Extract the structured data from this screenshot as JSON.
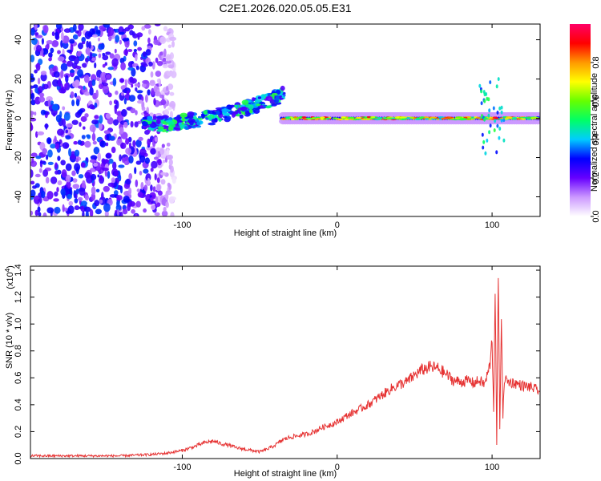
{
  "figure": {
    "title": "C2E1.2026.020.05.05.E31"
  },
  "chart_data": [
    {
      "type": "heatmap",
      "title": "C2E1.2026.020.05.05.E31",
      "xlabel": "Height of straight line (km)",
      "ylabel": "Frequency (Hz)",
      "xlim": [
        -198,
        131
      ],
      "ylim": [
        -50,
        48
      ],
      "xticks": [
        -100,
        0,
        100
      ],
      "xtick_labels": [
        "-100",
        "0",
        "100"
      ],
      "yticks": [
        -40,
        -20,
        0,
        20,
        40
      ],
      "ytick_labels": [
        "-40",
        "-20",
        "0",
        "20",
        "40"
      ],
      "grid": false,
      "colorbar": {
        "label": "Normalized spectral amplitude",
        "range": [
          0,
          1
        ],
        "ticks": [
          0,
          0.2,
          0.4,
          0.6,
          0.8
        ],
        "tick_labels": [
          "0.0",
          "0.2",
          "0.4",
          "0.6",
          "0.8"
        ],
        "colors": [
          "#ffffff",
          "#cc99ff",
          "#6600ff",
          "#0000ff",
          "#00ccff",
          "#00ff66",
          "#66ff00",
          "#ffff00",
          "#ff9900",
          "#ff0000",
          "#ff0066"
        ]
      },
      "features": [
        {
          "name": "noise region",
          "x": [
            -198,
            -105
          ],
          "y": [
            -50,
            48
          ],
          "amplitude": [
            0.1,
            0.35
          ]
        },
        {
          "name": "rising band",
          "x": [
            -125,
            -35
          ],
          "y_start": -3,
          "y_end": 12,
          "amplitude": [
            0.2,
            0.55
          ]
        },
        {
          "name": "steady band",
          "x": [
            -35,
            131
          ],
          "y": 0,
          "amplitude": [
            0.4,
            0.95
          ]
        },
        {
          "name": "feature near 105 km",
          "x": [
            92,
            108
          ],
          "y": [
            -18,
            22
          ],
          "amplitude": [
            0.3,
            0.7
          ]
        }
      ]
    },
    {
      "type": "line",
      "xlabel": "Height of straight line (km)",
      "ylabel": "SNR (10 * v/v)",
      "y_multiplier": "(x10",
      "y_multiplier_exp": "4",
      "y_multiplier_close": ")",
      "xlim": [
        -198,
        131
      ],
      "ylim": [
        0,
        1.43
      ],
      "xticks": [
        -100,
        0,
        100
      ],
      "xtick_labels": [
        "-100",
        "0",
        "100"
      ],
      "yticks": [
        0,
        0.2,
        0.4,
        0.6,
        0.8,
        1.0,
        1.2,
        1.4
      ],
      "ytick_labels": [
        "0.0",
        "0.2",
        "0.4",
        "0.6",
        "0.8",
        "1.0",
        "1.2",
        "1.4"
      ],
      "grid": false,
      "color": "#e63333",
      "series": [
        {
          "x": [
            -198,
            -180,
            -160,
            -140,
            -120,
            -110,
            -100,
            -92,
            -85,
            -80,
            -75,
            -70,
            -65,
            -60,
            -55,
            -50,
            -45,
            -40,
            -35,
            -30,
            -25,
            -20,
            -15,
            -10,
            -5,
            0,
            5,
            10,
            15,
            20,
            25,
            30,
            35,
            40,
            45,
            50,
            55,
            60,
            65,
            70,
            75,
            80,
            85,
            88,
            92,
            95,
            97,
            99,
            100,
            101,
            102,
            103,
            104,
            105,
            106,
            107,
            108,
            110,
            115,
            120,
            125,
            131
          ],
          "values": [
            0.02,
            0.02,
            0.02,
            0.02,
            0.03,
            0.04,
            0.06,
            0.09,
            0.12,
            0.13,
            0.11,
            0.1,
            0.08,
            0.07,
            0.06,
            0.05,
            0.07,
            0.1,
            0.14,
            0.16,
            0.17,
            0.18,
            0.2,
            0.23,
            0.25,
            0.27,
            0.31,
            0.34,
            0.37,
            0.4,
            0.44,
            0.48,
            0.52,
            0.55,
            0.57,
            0.62,
            0.66,
            0.68,
            0.67,
            0.63,
            0.58,
            0.57,
            0.58,
            0.56,
            0.58,
            0.55,
            0.62,
            0.72,
            0.9,
            0.35,
            1.3,
            0.1,
            1.4,
            0.2,
            1.1,
            0.3,
            0.6,
            0.57,
            0.56,
            0.54,
            0.53,
            0.5
          ]
        }
      ]
    }
  ]
}
